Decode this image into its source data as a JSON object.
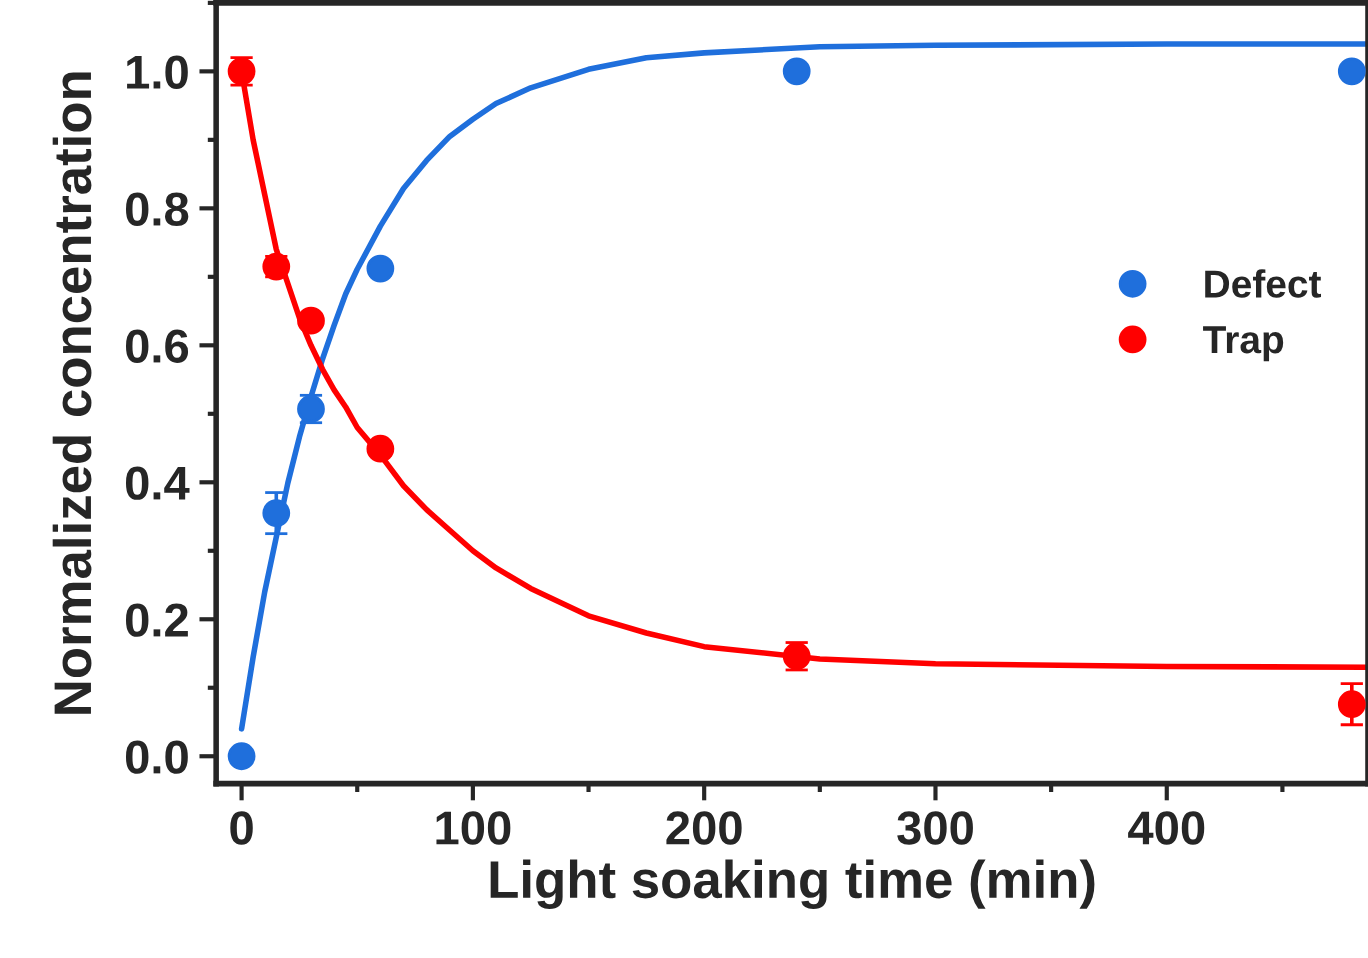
{
  "chart_data": {
    "type": "scatter",
    "xlabel": "Light soaking time (min)",
    "ylabel": "Normalized concentration",
    "xlim": [
      -11,
      487
    ],
    "ylim": [
      -0.04,
      1.1
    ],
    "xticks": [
      0,
      100,
      200,
      300,
      400
    ],
    "yticks": [
      {
        "value": 0,
        "label": "0.0"
      },
      {
        "value": 0.2,
        "label": "0.2"
      },
      {
        "value": 0.4,
        "label": "0.4"
      },
      {
        "value": 0.6,
        "label": "0.6"
      },
      {
        "value": 0.8,
        "label": "0.8"
      },
      {
        "value": 1.0,
        "label": "1.0"
      }
    ],
    "marker": "circle",
    "legend": "right",
    "grid": false,
    "series": [
      {
        "name": "Defect",
        "color": "#1f6fdc",
        "x": [
          0,
          15,
          30,
          60,
          240,
          480
        ],
        "values": [
          0.0,
          0.355,
          0.507,
          0.712,
          1.0,
          1.0
        ],
        "errors": [
          null,
          0.03,
          0.02,
          0.01,
          null,
          null
        ]
      },
      {
        "name": "Trap",
        "color": "#ff0000",
        "x": [
          0,
          15,
          30,
          60,
          240,
          480
        ],
        "values": [
          1.0,
          0.715,
          0.636,
          0.449,
          0.146,
          0.076
        ],
        "errors": [
          0.02,
          0.015,
          0.01,
          0.01,
          0.02,
          0.03
        ]
      },
      {
        "type": "line",
        "marker": "none",
        "color": "#1f6fdc",
        "x": [
          0,
          5,
          10,
          15,
          20,
          25,
          30,
          35,
          40,
          45,
          50,
          60,
          70,
          80,
          90,
          100,
          110,
          125,
          150,
          175,
          200,
          250,
          300,
          400,
          487
        ],
        "values": [
          0.04,
          0.145,
          0.24,
          0.32,
          0.399,
          0.466,
          0.525,
          0.58,
          0.629,
          0.675,
          0.711,
          0.774,
          0.829,
          0.87,
          0.905,
          0.93,
          0.953,
          0.976,
          1.003,
          1.02,
          1.027,
          1.036,
          1.038,
          1.04,
          1.04
        ]
      },
      {
        "type": "line",
        "marker": "none",
        "color": "#ff0000",
        "x": [
          0,
          5,
          10,
          15,
          20,
          25,
          30,
          35,
          40,
          45,
          50,
          60,
          70,
          80,
          90,
          100,
          110,
          125,
          150,
          175,
          200,
          250,
          300,
          400,
          487
        ],
        "values": [
          1.0,
          0.9,
          0.82,
          0.74,
          0.69,
          0.64,
          0.6,
          0.565,
          0.535,
          0.51,
          0.48,
          0.44,
          0.395,
          0.36,
          0.33,
          0.3,
          0.275,
          0.245,
          0.205,
          0.18,
          0.16,
          0.142,
          0.135,
          0.131,
          0.13
        ]
      }
    ]
  }
}
